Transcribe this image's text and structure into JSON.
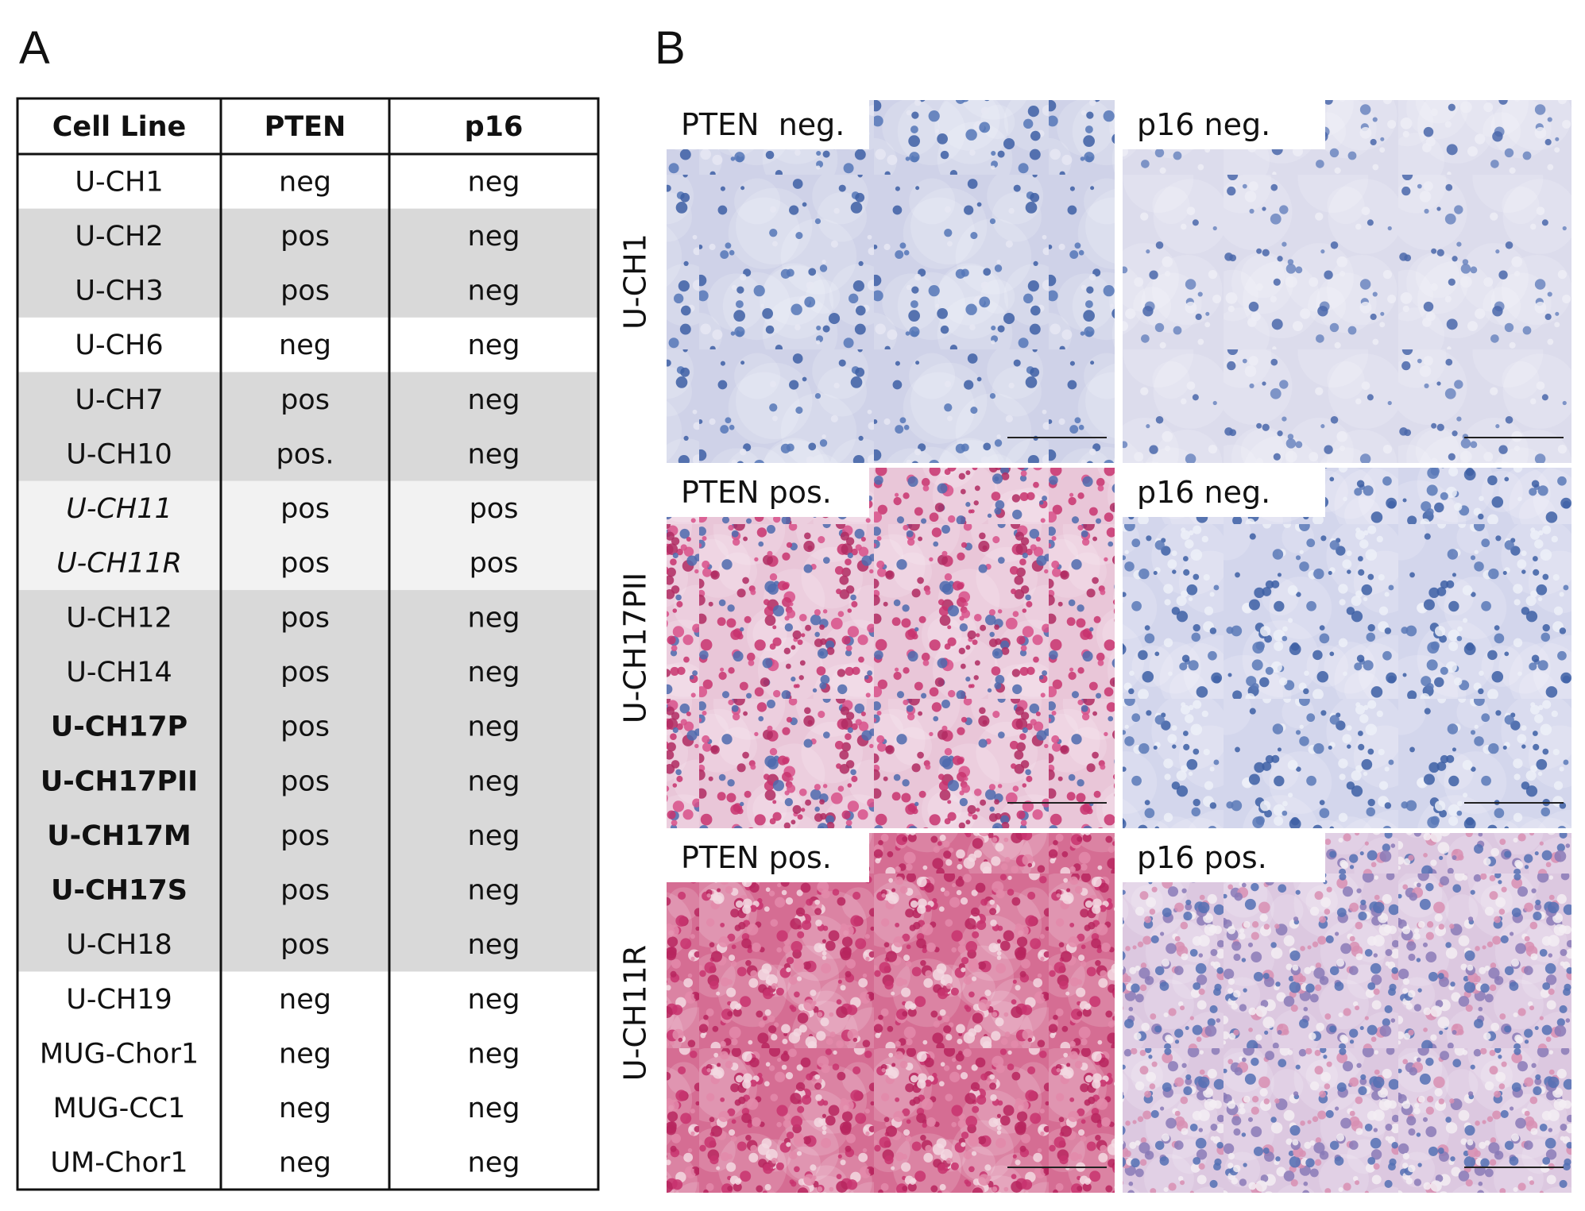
{
  "panel_a": {
    "label": "A",
    "table": {
      "header": [
        "Cell Line",
        "PTEN",
        "p16"
      ],
      "groups": [
        [
          [
            "U-CH1",
            "neg",
            "neg"
          ]
        ],
        [
          [
            "U-CH2",
            "pos",
            "neg"
          ],
          [
            "U-CH3",
            "pos",
            "neg"
          ]
        ],
        [
          [
            "U-CH6",
            "neg",
            "neg"
          ]
        ],
        [
          [
            "U-CH7",
            "pos",
            "neg"
          ],
          [
            "U-CH10",
            "pos.",
            "neg"
          ]
        ],
        [
          [
            "U-CH11",
            "pos",
            "pos"
          ],
          [
            "U-CH11R",
            "pos",
            "pos"
          ]
        ],
        [
          [
            "U-CH12",
            "pos",
            "neg"
          ],
          [
            "U-CH14",
            "pos",
            "neg"
          ],
          [
            "U-CH17P",
            "pos",
            "neg"
          ],
          [
            "U-CH17PII",
            "pos",
            "neg"
          ],
          [
            "U-CH17M",
            "pos",
            "neg"
          ],
          [
            "U-CH17S",
            "pos",
            "neg"
          ],
          [
            "U-CH18",
            "pos",
            "neg"
          ]
        ],
        [
          [
            "U-CH19",
            "neg",
            "neg"
          ],
          [
            "MUG-Chor1",
            "neg",
            "neg"
          ],
          [
            "MUG-CC1",
            "neg",
            "neg"
          ],
          [
            "UM-Chor1",
            "neg",
            "neg"
          ]
        ]
      ]
    }
  },
  "panel_b": {
    "label": "B",
    "rows": [
      {
        "label": "U-CH1",
        "images": [
          {
            "caption": "PTEN  neg."
          },
          {
            "caption": "p16 neg."
          }
        ]
      },
      {
        "label": "U-CH17PII",
        "images": [
          {
            "caption": "PTEN pos."
          },
          {
            "caption": "p16 neg."
          }
        ]
      },
      {
        "label": "U-CH11R",
        "images": [
          {
            "caption": "PTEN pos."
          },
          {
            "caption": "p16 pos."
          }
        ]
      }
    ]
  }
}
